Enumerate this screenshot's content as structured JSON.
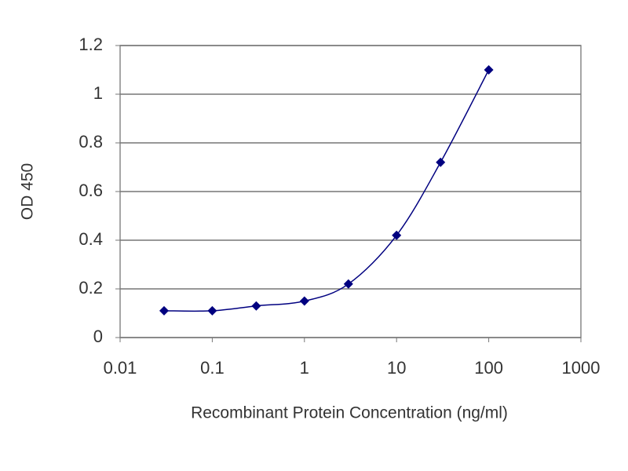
{
  "chart_data": {
    "type": "line",
    "x_label": "Recombinant Protein Concentration (ng/ml)",
    "y_label": "OD 450",
    "x": [
      0.03,
      0.1,
      0.3,
      1,
      3,
      10,
      30,
      100
    ],
    "series": [
      {
        "color": "#000080",
        "values": [
          0.11,
          0.11,
          0.13,
          0.15,
          0.22,
          0.42,
          0.72,
          1.1
        ]
      }
    ],
    "xlim": [
      0.01,
      1000
    ],
    "xticks": [
      0.01,
      0.1,
      1,
      10,
      100,
      1000
    ],
    "xlog": true,
    "ylim": [
      0,
      1.2
    ],
    "yticks": [
      0,
      0.2,
      0.4,
      0.6,
      0.8,
      1,
      1.2
    ],
    "grid": true
  }
}
